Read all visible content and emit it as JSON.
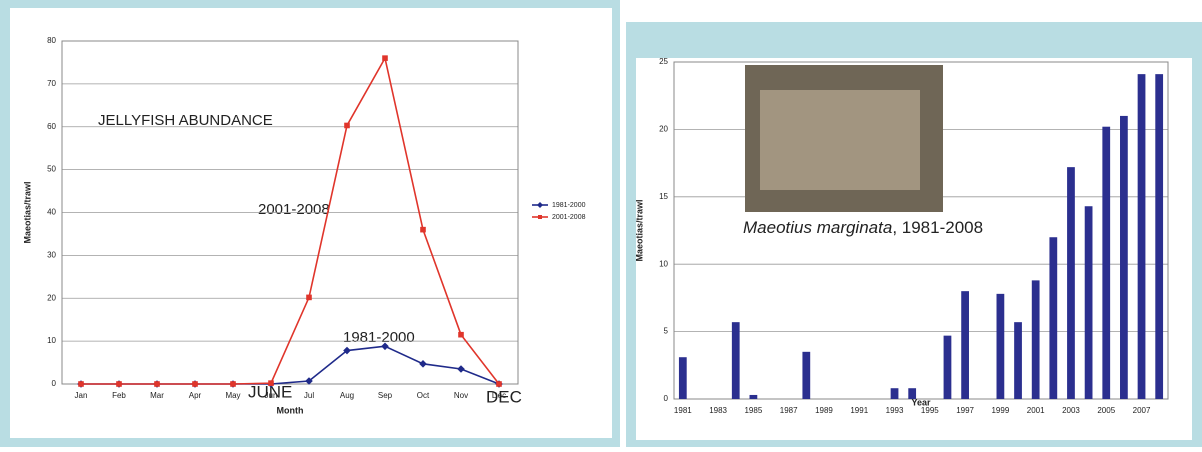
{
  "chart_data": [
    {
      "type": "line",
      "x_label": "Month",
      "y_label": "Maeotias/trawl",
      "categories": [
        "Jan",
        "Feb",
        "Mar",
        "Apr",
        "May",
        "Jun",
        "Jul",
        "Aug",
        "Sep",
        "Oct",
        "Nov",
        "Dec"
      ],
      "series": [
        {
          "name": "1981-2000",
          "color": "#1f2a8a",
          "marker": "diamond",
          "values": [
            0,
            0,
            0,
            0,
            0,
            0,
            0.7,
            7.8,
            8.8,
            4.7,
            3.5,
            0
          ]
        },
        {
          "name": "2001-2008",
          "color": "#e0352b",
          "marker": "square",
          "values": [
            0,
            0,
            0,
            0,
            0,
            0.2,
            20.2,
            60.3,
            76,
            36,
            11.5,
            0
          ]
        }
      ],
      "ylim": [
        0,
        80
      ],
      "yticks": [
        0,
        10,
        20,
        30,
        40,
        50,
        60,
        70,
        80
      ],
      "grid": true,
      "legend": "right",
      "annotations": [
        "JELLYFISH ABUNDANCE",
        "2001-2008",
        "1981-2000",
        "JUNE",
        "DEC"
      ]
    },
    {
      "type": "bar",
      "x_label": "Year",
      "y_label": "Maeotias/trawl",
      "categories": [
        "1981",
        null,
        "1983",
        null,
        "1985",
        null,
        "1987",
        null,
        "1989",
        null,
        "1991",
        null,
        "1993",
        null,
        "1995",
        null,
        "1997",
        null,
        "1999",
        null,
        "2001",
        null,
        "2003",
        null,
        "2005",
        null,
        "2007",
        null
      ],
      "values": [
        3.1,
        0,
        0,
        5.7,
        0.3,
        0,
        0,
        3.5,
        0,
        0,
        0,
        0,
        0.8,
        0.8,
        0,
        4.7,
        8,
        0,
        7.8,
        5.7,
        8.8,
        12,
        17.2,
        14.3,
        20.2,
        21,
        24.1,
        24.1
      ],
      "color": "#2b2f8f",
      "ylim": [
        0,
        25
      ],
      "yticks": [
        0,
        5,
        10,
        15,
        20,
        25
      ],
      "grid": true,
      "annotations": [
        "Maeotius marginata",
        ", 1981-2008"
      ]
    }
  ]
}
